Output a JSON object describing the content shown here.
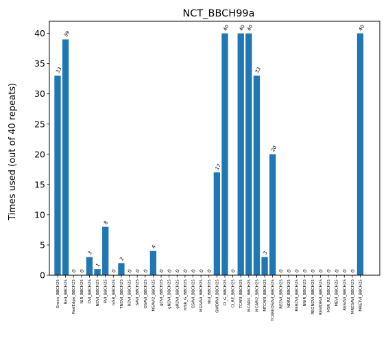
{
  "chart_data": {
    "type": "bar",
    "title": "NCT_BBCH99a",
    "xlabel": "",
    "ylabel": "Times used (out of 40 repeats)",
    "ylim": [
      0,
      42
    ],
    "yticks": [
      0,
      5,
      10,
      15,
      20,
      25,
      30,
      35,
      40
    ],
    "grid": false,
    "categories": [
      "Green_BBCH25",
      "Red_BBCH25",
      "RedEdge_BBCH25",
      "NIR_BBCH25",
      "DVI_BBCH25",
      "NDVI_BBCH25",
      "RVI_BBCH25",
      "mSR_BBCH25",
      "TNDVI_BBCH25",
      "RDVI_BBCH25",
      "SAVI_BBCH25",
      "OSAVI_BBCH25",
      "MSAVI2_BBCH25",
      "gDVI_BBCH25",
      "gNDVI_BBCH25",
      "gRDVI_BBCH25",
      "mSR_G_BBCH25",
      "GSAVI_BBCH25",
      "MGSAVI_BBCH25",
      "NGI_BBCH25",
      "GWDRVI_BBCH25",
      "CI_G_BBCH25",
      "CI_RE_BBCH25",
      "TCARI_BBCH25",
      "MCARI1_BBCH25",
      "MCARI2_BBCH25",
      "MTCARI_BBCH25",
      "TCARI/OSAVI_BBCH25",
      "REDVI_BBCH25",
      "NDRE_BBCH25",
      "RERDVI_BBCH25",
      "NNIR_BBCH25",
      "REGNDVI_BBCH25",
      "REWDRVI_BBCH25",
      "MSR_RE_BBCH25",
      "MEVI_BBCH25",
      "RESAVI_BBCH25",
      "MRESAVI_BBCH25",
      "MRETVI_BBCH25"
    ],
    "values": [
      33,
      39,
      0,
      0,
      3,
      1,
      8,
      0,
      2,
      0,
      0,
      0,
      4,
      0,
      0,
      0,
      0,
      0,
      0,
      0,
      17,
      40,
      0,
      40,
      40,
      33,
      3,
      20,
      0,
      0,
      0,
      0,
      0,
      0,
      0,
      0,
      0,
      0,
      40
    ],
    "bar_color": "#1f77b4"
  }
}
